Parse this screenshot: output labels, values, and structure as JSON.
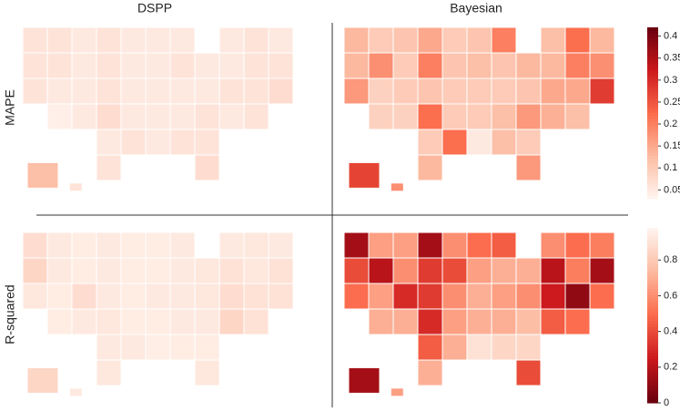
{
  "columns": [
    "DSPP",
    "Bayesian"
  ],
  "rows": [
    {
      "label": "MAPE",
      "colorbar": {
        "lim": [
          0.03,
          0.42
        ],
        "ticks": [
          0.05,
          0.1,
          0.15,
          0.2,
          0.25,
          0.3,
          0.35,
          0.4
        ],
        "reverse": false
      },
      "maps": [
        {
          "values": [
            0.06,
            0.06,
            0.05,
            0.06,
            0.05,
            0.05,
            0.05,
            0.05,
            0.06,
            0.05,
            0.06,
            0.06,
            0.05,
            0.06,
            0.05,
            0.05,
            0.06,
            0.05,
            0.05,
            0.06,
            0.06,
            0.06,
            0.05,
            0.05,
            0.06,
            0.05,
            0.05,
            0.05,
            0.05,
            0.06,
            0.06,
            0.07,
            0.04,
            0.05,
            0.07,
            0.05,
            0.05,
            0.05,
            0.06,
            0.05,
            0.06,
            0.05,
            0.06,
            0.05,
            0.06,
            0.06,
            0.06,
            0.07,
            0.12,
            0.06
          ]
        },
        {
          "values": [
            0.13,
            0.1,
            0.11,
            0.15,
            0.1,
            0.11,
            0.2,
            0.12,
            0.22,
            0.13,
            0.13,
            0.18,
            0.1,
            0.2,
            0.11,
            0.12,
            0.11,
            0.13,
            0.13,
            0.2,
            0.18,
            0.17,
            0.09,
            0.1,
            0.11,
            0.1,
            0.1,
            0.1,
            0.11,
            0.15,
            0.15,
            0.28,
            0.09,
            0.09,
            0.22,
            0.1,
            0.1,
            0.12,
            0.17,
            0.14,
            0.12,
            0.1,
            0.22,
            0.05,
            0.12,
            0.1,
            0.13,
            0.17,
            0.27,
            0.18
          ]
        }
      ]
    },
    {
      "label": "R-squared",
      "colorbar": {
        "lim": [
          0,
          0.98
        ],
        "ticks": [
          0,
          0.2,
          0.4,
          0.6,
          0.8
        ],
        "reverse": true
      },
      "maps": [
        {
          "values": [
            0.88,
            0.93,
            0.94,
            0.93,
            0.94,
            0.94,
            0.93,
            0.93,
            0.92,
            0.93,
            0.85,
            0.93,
            0.94,
            0.93,
            0.94,
            0.94,
            0.93,
            0.92,
            0.9,
            0.92,
            0.9,
            0.92,
            0.94,
            0.88,
            0.93,
            0.94,
            0.93,
            0.93,
            0.92,
            0.88,
            0.9,
            0.9,
            0.94,
            0.93,
            0.92,
            0.94,
            0.94,
            0.93,
            0.93,
            0.85,
            0.9,
            0.93,
            0.93,
            0.95,
            0.94,
            0.94,
            0.92,
            0.92,
            0.85,
            0.93
          ]
        },
        {
          "values": [
            0.15,
            0.65,
            0.65,
            0.15,
            0.6,
            0.5,
            0.45,
            0.6,
            0.5,
            0.55,
            0.4,
            0.2,
            0.6,
            0.35,
            0.4,
            0.65,
            0.7,
            0.7,
            0.2,
            0.55,
            0.15,
            0.5,
            0.65,
            0.3,
            0.35,
            0.6,
            0.7,
            0.65,
            0.6,
            0.25,
            0.1,
            0.5,
            0.7,
            0.7,
            0.3,
            0.65,
            0.7,
            0.7,
            0.75,
            0.45,
            0.5,
            0.45,
            0.7,
            0.9,
            0.85,
            0.85,
            0.7,
            0.4,
            0.15,
            0.65
          ]
        }
      ]
    }
  ]
}
